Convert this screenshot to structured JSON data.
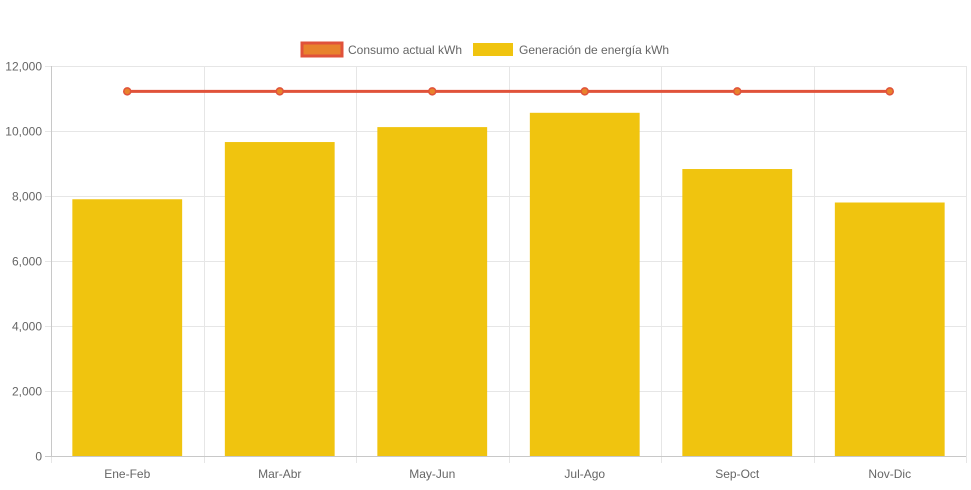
{
  "legend": {
    "line_label": "Consumo actual kWh",
    "bar_label": "Generación de energía kWh"
  },
  "colors": {
    "bar": "#f0c40f",
    "line": "#e0523a",
    "line_point_fill": "#e8822c",
    "grid": "#e6e6e6",
    "axis_text": "#666666"
  },
  "chart_data": {
    "type": "bar",
    "categories": [
      "Ene-Feb",
      "Mar-Abr",
      "May-Jun",
      "Jul-Ago",
      "Sep-Oct",
      "Nov-Dic"
    ],
    "series": [
      {
        "name": "Generación de energía kWh",
        "type": "bar",
        "values": [
          7900,
          9660,
          10120,
          10560,
          8830,
          7800
        ]
      },
      {
        "name": "Consumo actual kWh",
        "type": "line",
        "values": [
          11220,
          11220,
          11220,
          11220,
          11220,
          11220
        ]
      }
    ],
    "title": "",
    "xlabel": "",
    "ylabel": "",
    "ylim": [
      0,
      12000
    ],
    "yticks": [
      0,
      2000,
      4000,
      6000,
      8000,
      10000,
      12000
    ],
    "ytick_labels": [
      "0",
      "2,000",
      "4,000",
      "6,000",
      "8,000",
      "10,000",
      "12,000"
    ],
    "grid": true,
    "legend_position": "top-center"
  }
}
